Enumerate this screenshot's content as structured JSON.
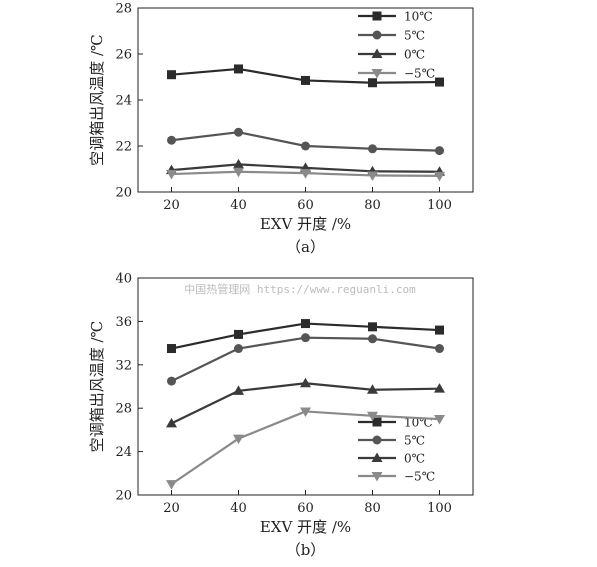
{
  "watermark": "中国热管理网 https://www.reguanli.com",
  "chart_data": [
    {
      "type": "line",
      "caption": "（a）",
      "xlabel": "EXV 开度 /%",
      "ylabel": "空调箱出风温度 /℃",
      "x": [
        20,
        40,
        60,
        80,
        100
      ],
      "xticks": [
        "20",
        "40",
        "60",
        "80",
        "100"
      ],
      "ylim": [
        20,
        28
      ],
      "yticks": [
        "20",
        "22",
        "24",
        "26",
        "28"
      ],
      "grid": false,
      "legend_position": "top-right",
      "series": [
        {
          "name": "10℃",
          "marker": "square",
          "color": "#2b2b2b",
          "values": [
            25.1,
            25.35,
            24.85,
            24.75,
            24.78
          ]
        },
        {
          "name": "5℃",
          "marker": "circle",
          "color": "#555555",
          "values": [
            22.25,
            22.6,
            22.0,
            21.88,
            21.8
          ]
        },
        {
          "name": "0℃",
          "marker": "triangle-up",
          "color": "#3a3a3a",
          "values": [
            20.95,
            21.2,
            21.05,
            20.9,
            20.88
          ]
        },
        {
          "name": "−5℃",
          "marker": "triangle-down",
          "color": "#8a8a8a",
          "values": [
            20.78,
            20.88,
            20.82,
            20.72,
            20.7
          ]
        }
      ]
    },
    {
      "type": "line",
      "caption": "（b）",
      "xlabel": "EXV 开度 /%",
      "ylabel": "空调箱出风温度 /℃",
      "x": [
        20,
        40,
        60,
        80,
        100
      ],
      "xticks": [
        "20",
        "40",
        "60",
        "80",
        "100"
      ],
      "ylim": [
        20,
        40
      ],
      "yticks": [
        "20",
        "24",
        "28",
        "32",
        "36",
        "40"
      ],
      "grid": false,
      "legend_position": "bottom-right",
      "series": [
        {
          "name": "10℃",
          "marker": "square",
          "color": "#2b2b2b",
          "values": [
            33.5,
            34.8,
            35.8,
            35.5,
            35.2
          ]
        },
        {
          "name": "5℃",
          "marker": "circle",
          "color": "#555555",
          "values": [
            30.5,
            33.5,
            34.5,
            34.4,
            33.5
          ]
        },
        {
          "name": "0℃",
          "marker": "triangle-up",
          "color": "#3a3a3a",
          "values": [
            26.6,
            29.6,
            30.3,
            29.7,
            29.8
          ]
        },
        {
          "name": "−5℃",
          "marker": "triangle-down",
          "color": "#8a8a8a",
          "values": [
            21.0,
            25.2,
            27.7,
            27.3,
            27.0
          ]
        }
      ]
    }
  ]
}
